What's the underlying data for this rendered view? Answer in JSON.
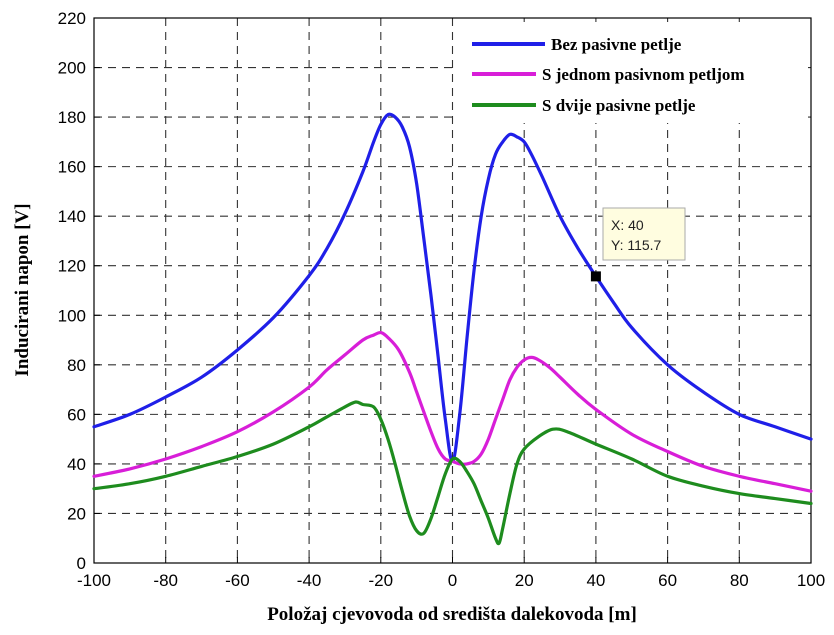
{
  "chart_data": {
    "type": "line",
    "xlabel": "Položaj cjevovoda od središta dalekovoda [m]",
    "ylabel": "Inducirani napon [V]",
    "xlim": [
      -100,
      100
    ],
    "ylim": [
      0,
      220
    ],
    "xticks": [
      -100,
      -80,
      -60,
      -40,
      -20,
      0,
      20,
      40,
      60,
      80,
      100
    ],
    "yticks": [
      0,
      20,
      40,
      60,
      80,
      100,
      120,
      140,
      160,
      180,
      200,
      220
    ],
    "xtick_labels": [
      "-100",
      "-80",
      "-60",
      "-40",
      "-20",
      "0",
      "20",
      "40",
      "60",
      "80",
      "100"
    ],
    "ytick_labels": [
      "0",
      "20",
      "40",
      "60",
      "80",
      "100",
      "120",
      "140",
      "160",
      "180",
      "200",
      "220"
    ],
    "grid": true,
    "legend_position": "top-right",
    "series": [
      {
        "name": "Bez pasivne petlje",
        "color": "#1f1fe8",
        "points": [
          [
            -100,
            55
          ],
          [
            -90,
            60
          ],
          [
            -80,
            67
          ],
          [
            -70,
            75
          ],
          [
            -60,
            86
          ],
          [
            -50,
            99
          ],
          [
            -40,
            116
          ],
          [
            -35,
            127
          ],
          [
            -30,
            141
          ],
          [
            -25,
            158
          ],
          [
            -22,
            170
          ],
          [
            -20,
            177
          ],
          [
            -18,
            181
          ],
          [
            -16,
            180
          ],
          [
            -14,
            176
          ],
          [
            -12,
            168
          ],
          [
            -10,
            153
          ],
          [
            -8,
            131
          ],
          [
            -6,
            108
          ],
          [
            -4,
            83
          ],
          [
            -2,
            58
          ],
          [
            0,
            41
          ],
          [
            2,
            60
          ],
          [
            4,
            90
          ],
          [
            6,
            118
          ],
          [
            8,
            140
          ],
          [
            10,
            155
          ],
          [
            12,
            165
          ],
          [
            14,
            170
          ],
          [
            16,
            173
          ],
          [
            18,
            172
          ],
          [
            20,
            170
          ],
          [
            22,
            165
          ],
          [
            25,
            156
          ],
          [
            30,
            140
          ],
          [
            35,
            127
          ],
          [
            40,
            115.7
          ],
          [
            45,
            105
          ],
          [
            50,
            95
          ],
          [
            60,
            80
          ],
          [
            70,
            69
          ],
          [
            80,
            60
          ],
          [
            90,
            55
          ],
          [
            100,
            50
          ]
        ]
      },
      {
        "name": "S jednom pasivnom petljom",
        "color": "#d81ed8",
        "points": [
          [
            -100,
            35
          ],
          [
            -90,
            38
          ],
          [
            -80,
            42
          ],
          [
            -70,
            47
          ],
          [
            -60,
            53
          ],
          [
            -50,
            61
          ],
          [
            -40,
            71
          ],
          [
            -35,
            78
          ],
          [
            -30,
            84
          ],
          [
            -25,
            90
          ],
          [
            -22,
            92
          ],
          [
            -20,
            93
          ],
          [
            -18,
            91
          ],
          [
            -15,
            86
          ],
          [
            -12,
            77
          ],
          [
            -10,
            69
          ],
          [
            -8,
            61
          ],
          [
            -6,
            53
          ],
          [
            -4,
            46
          ],
          [
            -2,
            42
          ],
          [
            0,
            41
          ],
          [
            2,
            40
          ],
          [
            4,
            40
          ],
          [
            6,
            41
          ],
          [
            8,
            44
          ],
          [
            10,
            50
          ],
          [
            12,
            58
          ],
          [
            14,
            66
          ],
          [
            16,
            74
          ],
          [
            18,
            79
          ],
          [
            20,
            82
          ],
          [
            22,
            83
          ],
          [
            24,
            82
          ],
          [
            27,
            79
          ],
          [
            30,
            75
          ],
          [
            35,
            68
          ],
          [
            40,
            62
          ],
          [
            50,
            52
          ],
          [
            60,
            45
          ],
          [
            70,
            39
          ],
          [
            80,
            35
          ],
          [
            90,
            32
          ],
          [
            100,
            29
          ]
        ]
      },
      {
        "name": "S dvije pasivne petlje",
        "color": "#1e8c1e",
        "points": [
          [
            -100,
            30
          ],
          [
            -90,
            32
          ],
          [
            -80,
            35
          ],
          [
            -70,
            39
          ],
          [
            -60,
            43
          ],
          [
            -50,
            48
          ],
          [
            -40,
            55
          ],
          [
            -35,
            59
          ],
          [
            -30,
            63
          ],
          [
            -27,
            65
          ],
          [
            -25,
            64
          ],
          [
            -22,
            63
          ],
          [
            -20,
            58
          ],
          [
            -18,
            50
          ],
          [
            -16,
            40
          ],
          [
            -14,
            29
          ],
          [
            -12,
            19
          ],
          [
            -10,
            13
          ],
          [
            -8,
            12
          ],
          [
            -6,
            18
          ],
          [
            -4,
            27
          ],
          [
            -2,
            36
          ],
          [
            0,
            42
          ],
          [
            2,
            41
          ],
          [
            4,
            37
          ],
          [
            6,
            32
          ],
          [
            8,
            25
          ],
          [
            10,
            18
          ],
          [
            12,
            10
          ],
          [
            13,
            8
          ],
          [
            14,
            14
          ],
          [
            16,
            28
          ],
          [
            18,
            40
          ],
          [
            20,
            46
          ],
          [
            24,
            51
          ],
          [
            28,
            54
          ],
          [
            32,
            53
          ],
          [
            40,
            48
          ],
          [
            50,
            42
          ],
          [
            60,
            35
          ],
          [
            70,
            31
          ],
          [
            80,
            28
          ],
          [
            90,
            26
          ],
          [
            100,
            24
          ]
        ]
      }
    ],
    "datatip": {
      "label_x": "X: 40",
      "label_y": "Y: 115.7",
      "x": 40,
      "y": 115.7
    }
  }
}
